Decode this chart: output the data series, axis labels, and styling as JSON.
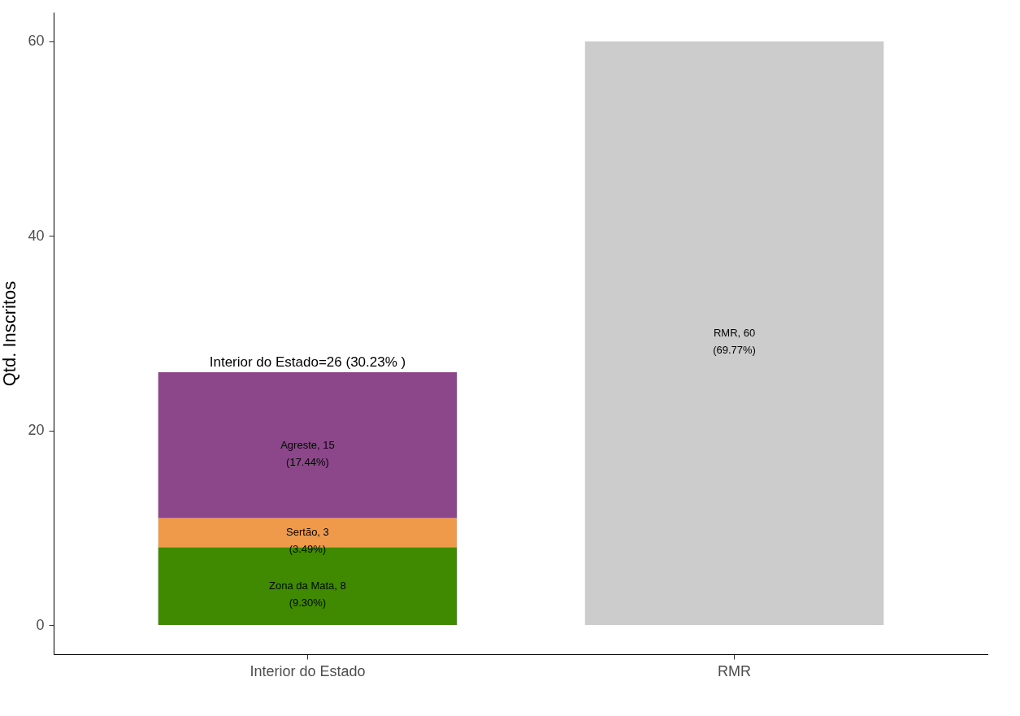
{
  "chart_data": {
    "type": "bar",
    "stacked": true,
    "ylabel": "Qtd. Inscritos",
    "categories": [
      "Interior do Estado",
      "RMR"
    ],
    "series": [
      {
        "color": "#3f8a00",
        "values": [
          8,
          null
        ],
        "value_labels": [
          "Zona da Mata, 8\n(9.30%)",
          null
        ]
      },
      {
        "color": "#ee9a4a",
        "values": [
          3,
          null
        ],
        "value_labels": [
          "Sertão, 3\n(3.49%)",
          null
        ]
      },
      {
        "color": "#8b4789",
        "values": [
          15,
          null
        ],
        "value_labels": [
          "Agreste, 15\n(17.44%)",
          null
        ]
      },
      {
        "color": "#cccccc",
        "values": [
          null,
          60
        ],
        "value_labels": [
          null,
          "RMR, 60\n(69.77%)"
        ]
      }
    ],
    "totals": [
      "Interior do Estado=26 (30.23% )",
      null
    ],
    "ylim": [
      -3,
      63
    ],
    "yticks": [
      0,
      20,
      40,
      60
    ],
    "grid": false,
    "legend": false
  }
}
